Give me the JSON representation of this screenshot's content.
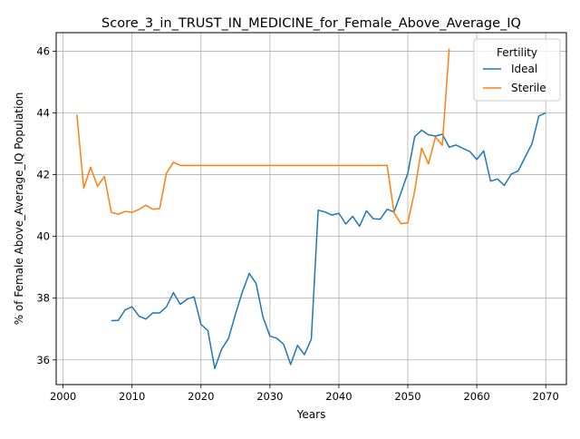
{
  "chart_data": {
    "type": "line",
    "title": "Score_3_in_TRUST_IN_MEDICINE_for_Female_Above_Average_IQ",
    "xlabel": "Years",
    "ylabel": "% of Female Above_Average_IQ Population",
    "xlim": [
      1999,
      2073
    ],
    "ylim": [
      35.2,
      46.6
    ],
    "xticks": [
      2000,
      2010,
      2020,
      2030,
      2040,
      2050,
      2060,
      2070
    ],
    "yticks": [
      36,
      38,
      40,
      42,
      44,
      46
    ],
    "grid": true,
    "legend": {
      "title": "Fertility",
      "position": "top-right"
    },
    "series": [
      {
        "name": "Ideal",
        "color": "#1f77b4",
        "x": [
          2007,
          2008,
          2009,
          2010,
          2011,
          2012,
          2013,
          2014,
          2015,
          2016,
          2017,
          2018,
          2019,
          2020,
          2021,
          2022,
          2023,
          2024,
          2025,
          2026,
          2027,
          2028,
          2029,
          2030,
          2031,
          2032,
          2033,
          2034,
          2035,
          2036,
          2037,
          2038,
          2039,
          2040,
          2041,
          2042,
          2043,
          2044,
          2045,
          2046,
          2047,
          2048,
          2049,
          2050,
          2051,
          2052,
          2053,
          2054,
          2055,
          2056,
          2057,
          2058,
          2059,
          2060,
          2061,
          2062,
          2063,
          2064,
          2065,
          2066,
          2067,
          2068,
          2069,
          2070
        ],
        "values": [
          37.27,
          37.28,
          37.62,
          37.72,
          37.42,
          37.32,
          37.52,
          37.52,
          37.72,
          38.18,
          37.8,
          37.97,
          38.04,
          37.15,
          36.95,
          35.72,
          36.35,
          36.7,
          37.48,
          38.2,
          38.8,
          38.47,
          37.38,
          36.77,
          36.7,
          36.5,
          35.85,
          36.47,
          36.17,
          36.67,
          40.85,
          40.79,
          40.69,
          40.75,
          40.4,
          40.65,
          40.33,
          40.83,
          40.57,
          40.56,
          40.88,
          40.79,
          41.41,
          42.05,
          43.23,
          43.44,
          43.29,
          43.25,
          43.31,
          42.89,
          42.96,
          42.85,
          42.75,
          42.49,
          42.77,
          41.79,
          41.86,
          41.65,
          42.02,
          42.12,
          42.56,
          43.0,
          43.9,
          44.0
        ]
      },
      {
        "name": "Sterile",
        "color": "#ff7f0e",
        "x": [
          2002,
          2003,
          2004,
          2005,
          2006,
          2007,
          2008,
          2009,
          2010,
          2011,
          2012,
          2013,
          2014,
          2015,
          2016,
          2017,
          2018,
          2019,
          2020,
          2021,
          2022,
          2023,
          2024,
          2025,
          2026,
          2027,
          2028,
          2029,
          2030,
          2031,
          2032,
          2033,
          2034,
          2035,
          2036,
          2037,
          2038,
          2039,
          2040,
          2041,
          2042,
          2043,
          2044,
          2045,
          2046,
          2047,
          2048,
          2049,
          2050,
          2051,
          2052,
          2053,
          2054,
          2055,
          2056
        ],
        "values": [
          43.95,
          41.56,
          42.24,
          41.62,
          41.94,
          40.78,
          40.72,
          40.81,
          40.78,
          40.87,
          41.01,
          40.88,
          40.9,
          42.05,
          42.4,
          42.3,
          42.3,
          42.3,
          42.3,
          42.3,
          42.3,
          42.3,
          42.3,
          42.3,
          42.3,
          42.3,
          42.3,
          42.3,
          42.3,
          42.3,
          42.3,
          42.3,
          42.3,
          42.3,
          42.3,
          42.3,
          42.3,
          42.3,
          42.3,
          42.3,
          42.3,
          42.3,
          42.3,
          42.3,
          42.3,
          42.3,
          40.77,
          40.41,
          40.44,
          41.48,
          42.86,
          42.35,
          43.22,
          42.95,
          46.08
        ]
      }
    ]
  }
}
